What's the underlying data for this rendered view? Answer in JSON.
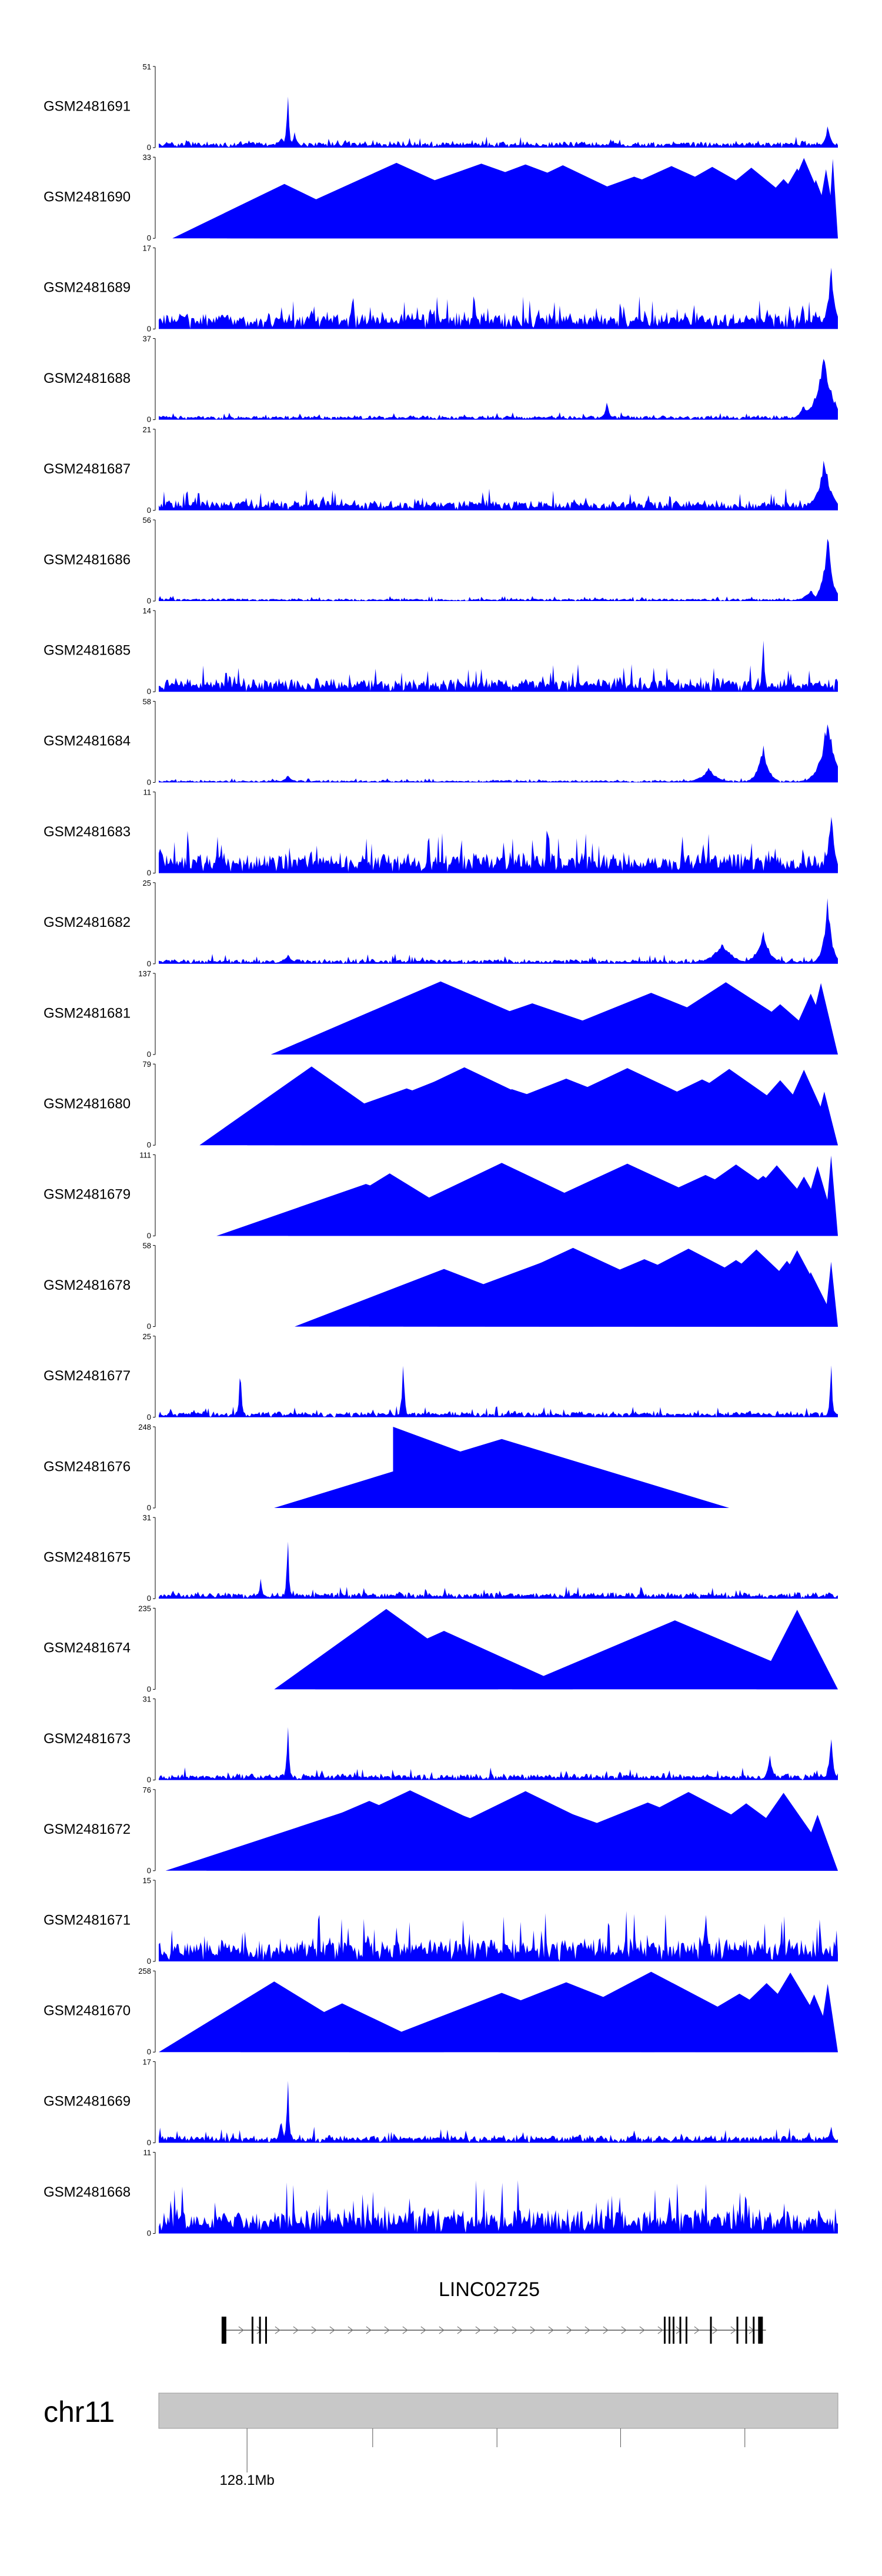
{
  "colors": {
    "signal": "#0000ff",
    "axis": "#000000",
    "ideogram_fill": "#c8c8c8",
    "ideogram_stroke": "#9a9a9a",
    "gene_line": "#555555"
  },
  "chart_data": {
    "type": "area",
    "title": "",
    "xlabel": "",
    "ylabel": "",
    "chromosome": "chr11",
    "gene": {
      "name": "LINC02725",
      "strand": "+",
      "start_frac": 0.096,
      "end_frac": 0.894,
      "exons": [
        0.096,
        0.138,
        0.149,
        0.158,
        0.745,
        0.752,
        0.758,
        0.768,
        0.777,
        0.813,
        0.852,
        0.865,
        0.876,
        0.886
      ]
    },
    "x_ticks": [
      {
        "pos": 0.13,
        "label": "128.1Mb"
      },
      {
        "pos": 0.315,
        "label": ""
      },
      {
        "pos": 0.498,
        "label": ""
      },
      {
        "pos": 0.68,
        "label": ""
      },
      {
        "pos": 0.863,
        "label": ""
      }
    ],
    "tracks": [
      {
        "name": "GSM2481691",
        "ymax": "51",
        "ymin": "0",
        "ylim": [
          0,
          51
        ],
        "style": "noise",
        "base": 0.05,
        "noise": 0.1,
        "peaks": [
          [
            0.18,
            0.15,
            0.006
          ],
          [
            0.19,
            1.0,
            0.002
          ],
          [
            0.2,
            0.2,
            0.005
          ],
          [
            0.985,
            0.3,
            0.005
          ]
        ]
      },
      {
        "name": "GSM2481690",
        "ymax": "33",
        "ymin": "0",
        "ylim": [
          0,
          33
        ],
        "style": "tri",
        "tris": [
          [
            0.02,
            0.33
          ],
          [
            0.075,
            0.53
          ],
          [
            0.105,
            0.49
          ],
          [
            0.1,
            0.96
          ],
          [
            0.14,
            0.62
          ],
          [
            0.165,
            0.62
          ],
          [
            0.198,
            0.44
          ],
          [
            0.22,
            0.65
          ],
          [
            0.25,
            0.58
          ],
          [
            0.29,
            0.48
          ],
          [
            0.33,
            0.48
          ],
          [
            0.37,
            0.45
          ],
          [
            0.41,
            0.62
          ],
          [
            0.45,
            0.5
          ],
          [
            0.52,
            0.47
          ],
          [
            0.57,
            0.54
          ],
          [
            0.6,
            0.5
          ],
          [
            0.63,
            0.38
          ],
          [
            0.66,
            0.33
          ],
          [
            0.71,
            0.55
          ],
          [
            0.745,
            0.57
          ],
          [
            0.79,
            0.38
          ],
          [
            0.84,
            0.34
          ],
          [
            0.88,
            0.4
          ],
          [
            0.9,
            0.52
          ],
          [
            0.935,
            0.36
          ],
          [
            0.965,
            0.53
          ],
          [
            0.985,
            0.62
          ]
        ]
      },
      {
        "name": "GSM2481689",
        "ymax": "17",
        "ymin": "0",
        "ylim": [
          0,
          17
        ],
        "style": "noise",
        "base": 0.1,
        "noise": 0.35,
        "peaks": [
          [
            0.97,
            0.2,
            0.01
          ],
          [
            0.99,
            0.85,
            0.006
          ]
        ]
      },
      {
        "name": "GSM2481688",
        "ymax": "37",
        "ymin": "0",
        "ylim": [
          0,
          37
        ],
        "style": "noise",
        "base": 0.03,
        "noise": 0.08,
        "peaks": [
          [
            0.66,
            0.25,
            0.004
          ],
          [
            0.98,
            0.9,
            0.012
          ],
          [
            0.95,
            0.2,
            0.008
          ]
        ]
      },
      {
        "name": "GSM2481687",
        "ymax": "21",
        "ymin": "0",
        "ylim": [
          0,
          21
        ],
        "style": "noise",
        "base": 0.06,
        "noise": 0.22,
        "peaks": [
          [
            0.98,
            0.75,
            0.01
          ]
        ]
      },
      {
        "name": "GSM2481686",
        "ymax": "56",
        "ymin": "0",
        "ylim": [
          0,
          56
        ],
        "style": "noise",
        "base": 0.02,
        "noise": 0.05,
        "peaks": [
          [
            0.985,
            0.9,
            0.007
          ],
          [
            0.96,
            0.15,
            0.01
          ]
        ]
      },
      {
        "name": "GSM2481685",
        "ymax": "14",
        "ymin": "0",
        "ylim": [
          0,
          14
        ],
        "style": "noise",
        "base": 0.08,
        "noise": 0.3,
        "peaks": [
          [
            0.89,
            0.9,
            0.002
          ]
        ]
      },
      {
        "name": "GSM2481684",
        "ymax": "58",
        "ymin": "0",
        "ylim": [
          0,
          58
        ],
        "style": "noise",
        "base": 0.02,
        "noise": 0.04,
        "peaks": [
          [
            0.19,
            0.1,
            0.006
          ],
          [
            0.81,
            0.2,
            0.012
          ],
          [
            0.89,
            0.5,
            0.008
          ],
          [
            0.985,
            0.95,
            0.01
          ]
        ]
      },
      {
        "name": "GSM2481683",
        "ymax": "11",
        "ymin": "0",
        "ylim": [
          0,
          11
        ],
        "style": "noise",
        "base": 0.12,
        "noise": 0.45,
        "peaks": [
          [
            0.99,
            0.9,
            0.005
          ]
        ]
      },
      {
        "name": "GSM2481682",
        "ymax": "25",
        "ymin": "0",
        "ylim": [
          0,
          25
        ],
        "style": "noise",
        "base": 0.03,
        "noise": 0.1,
        "peaks": [
          [
            0.19,
            0.12,
            0.008
          ],
          [
            0.83,
            0.3,
            0.015
          ],
          [
            0.89,
            0.45,
            0.01
          ],
          [
            0.985,
            0.9,
            0.006
          ]
        ]
      },
      {
        "name": "GSM2481681",
        "ymax": "137",
        "ymin": "0",
        "ylim": [
          0,
          137
        ],
        "style": "tri",
        "tris": [
          [
            0.165,
            0.5
          ],
          [
            0.33,
            0.44
          ],
          [
            0.5,
            0.45
          ],
          [
            0.67,
            0.5
          ],
          [
            0.83,
            0.52
          ],
          [
            0.92,
            0.48
          ],
          [
            0.95,
            0.49
          ],
          [
            1.0,
            0.51
          ]
        ]
      },
      {
        "name": "GSM2481680",
        "ymax": "79",
        "ymin": "0",
        "ylim": [
          0,
          79
        ],
        "style": "tri",
        "tris": [
          [
            0.06,
            0.33
          ],
          [
            0.13,
            0.47
          ],
          [
            0.17,
            0.5
          ],
          [
            0.21,
            0.48
          ],
          [
            0.27,
            0.5
          ],
          [
            0.35,
            0.5
          ],
          [
            0.45,
            0.48
          ],
          [
            0.54,
            0.49
          ],
          [
            0.6,
            0.51
          ],
          [
            0.68,
            0.5
          ],
          [
            0.77,
            0.45
          ],
          [
            0.83,
            0.51
          ],
          [
            0.9,
            0.48
          ],
          [
            0.96,
            0.48
          ]
        ]
      },
      {
        "name": "GSM2481679",
        "ymax": "111",
        "ymin": "0",
        "ylim": [
          0,
          111
        ],
        "style": "tri",
        "tris": [
          [
            0.085,
            0.44
          ],
          [
            0.19,
            0.3
          ],
          [
            0.28,
            0.45
          ],
          [
            0.35,
            0.33
          ],
          [
            0.41,
            0.54
          ],
          [
            0.46,
            0.46
          ],
          [
            0.52,
            0.45
          ],
          [
            0.61,
            0.47
          ],
          [
            0.7,
            0.53
          ],
          [
            0.73,
            0.49
          ],
          [
            0.78,
            0.48
          ],
          [
            0.82,
            0.47
          ],
          [
            0.86,
            0.51
          ],
          [
            0.9,
            0.45
          ],
          [
            0.94,
            0.48
          ],
          [
            0.98,
            0.48
          ]
        ]
      },
      {
        "name": "GSM2481678",
        "ymax": "58",
        "ymin": "0",
        "ylim": [
          0,
          58
        ],
        "style": "tri",
        "tris": [
          [
            0.2,
            0.44
          ],
          [
            0.31,
            0.54
          ],
          [
            0.36,
            0.5
          ],
          [
            0.41,
            0.51
          ],
          [
            0.48,
            0.47
          ],
          [
            0.56,
            0.49
          ],
          [
            0.62,
            0.46
          ],
          [
            0.7,
            0.5
          ],
          [
            0.76,
            0.49
          ],
          [
            0.82,
            0.53
          ],
          [
            0.85,
            0.49
          ],
          [
            0.88,
            0.49
          ],
          [
            0.92,
            0.46
          ],
          [
            0.98,
            0.49
          ]
        ]
      },
      {
        "name": "GSM2481677",
        "ymax": "25",
        "ymin": "0",
        "ylim": [
          0,
          25
        ],
        "style": "noise",
        "base": 0.04,
        "noise": 0.12,
        "peaks": [
          [
            0.12,
            0.8,
            0.002
          ],
          [
            0.36,
            0.9,
            0.002
          ],
          [
            0.99,
            0.8,
            0.002
          ]
        ]
      },
      {
        "name": "GSM2481676",
        "ymax": "248",
        "ymin": "0",
        "ylim": [
          0,
          248
        ],
        "style": "tri",
        "tris": [
          [
            0.17,
            0.67
          ]
        ]
      },
      {
        "name": "GSM2481675",
        "ymax": "31",
        "ymin": "0",
        "ylim": [
          0,
          31
        ],
        "style": "noise",
        "base": 0.04,
        "noise": 0.13,
        "peaks": [
          [
            0.19,
            0.9,
            0.002
          ],
          [
            0.15,
            0.25,
            0.003
          ]
        ]
      },
      {
        "name": "GSM2481674",
        "ymax": "235",
        "ymin": "0",
        "ylim": [
          0,
          235
        ],
        "style": "tri",
        "tris": [
          [
            0.17,
            0.33
          ],
          [
            0.23,
            0.38
          ],
          [
            0.52,
            0.49
          ],
          [
            0.88,
            0.47
          ]
        ]
      },
      {
        "name": "GSM2481673",
        "ymax": "31",
        "ymin": "0",
        "ylim": [
          0,
          31
        ],
        "style": "noise",
        "base": 0.04,
        "noise": 0.13,
        "peaks": [
          [
            0.19,
            0.9,
            0.002
          ],
          [
            0.9,
            0.35,
            0.004
          ],
          [
            0.99,
            0.75,
            0.003
          ]
        ]
      },
      {
        "name": "GSM2481672",
        "ymax": "76",
        "ymin": "0",
        "ylim": [
          0,
          76
        ],
        "style": "tri",
        "tris": [
          [
            0.01,
            0.53
          ],
          [
            0.07,
            0.48
          ],
          [
            0.12,
            0.5
          ],
          [
            0.2,
            0.47
          ],
          [
            0.25,
            0.56
          ],
          [
            0.3,
            0.48
          ],
          [
            0.37,
            0.47
          ],
          [
            0.47,
            0.5
          ],
          [
            0.56,
            0.48
          ],
          [
            0.62,
            0.59
          ],
          [
            0.73,
            0.5
          ],
          [
            0.84,
            0.55
          ],
          [
            0.94,
            0.49
          ]
        ]
      },
      {
        "name": "GSM2481671",
        "ymax": "15",
        "ymin": "0",
        "ylim": [
          0,
          15
        ],
        "style": "noise",
        "base": 0.12,
        "noise": 0.55,
        "peaks": []
      },
      {
        "name": "GSM2481670",
        "ymax": "258",
        "ymin": "0",
        "ylim": [
          0,
          258
        ],
        "style": "tri",
        "tris": [
          [
            0.0,
            0.34
          ],
          [
            0.12,
            0.3
          ],
          [
            0.28,
            0.45
          ],
          [
            0.34,
            0.52
          ],
          [
            0.5,
            0.45
          ],
          [
            0.71,
            0.51
          ],
          [
            0.79,
            0.45
          ],
          [
            0.86,
            0.48
          ],
          [
            0.93,
            0.46
          ],
          [
            0.97,
            0.52
          ]
        ]
      },
      {
        "name": "GSM2481669",
        "ymax": "17",
        "ymin": "0",
        "ylim": [
          0,
          17
        ],
        "style": "noise",
        "base": 0.05,
        "noise": 0.16,
        "peaks": [
          [
            0.19,
            0.95,
            0.002
          ],
          [
            0.18,
            0.3,
            0.004
          ],
          [
            0.99,
            0.25,
            0.003
          ]
        ]
      },
      {
        "name": "GSM2481668",
        "ymax": "11",
        "ymin": "0",
        "ylim": [
          0,
          11
        ],
        "style": "noise",
        "base": 0.12,
        "noise": 0.6,
        "peaks": []
      }
    ]
  }
}
